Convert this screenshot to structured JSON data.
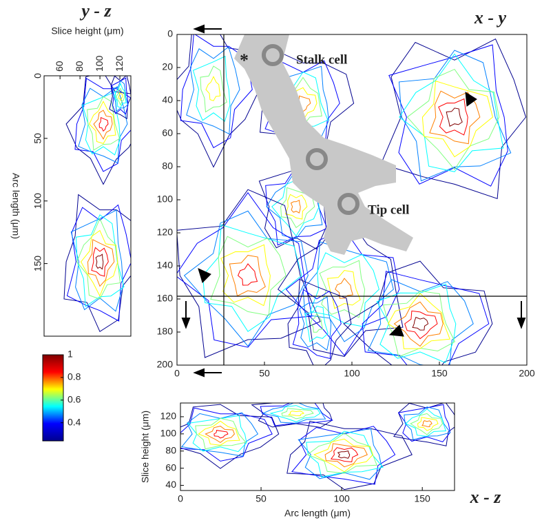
{
  "chart_data": [
    {
      "type": "contour",
      "title": "x - y",
      "xlim": [
        0,
        200
      ],
      "xticks": [
        0,
        50,
        100,
        150,
        200
      ],
      "ylim": [
        0,
        200
      ],
      "yticks": [
        0,
        20,
        40,
        60,
        80,
        100,
        120,
        140,
        160,
        180,
        200
      ],
      "yreverse": true,
      "annotations": [
        "Stalk cell",
        "Tip cell",
        "*"
      ]
    },
    {
      "type": "contour",
      "title": "y - z",
      "xlabel": "Slice height (μm)",
      "ylabel": "Arc length (μm)",
      "xlim": [
        44,
        131
      ],
      "xticks": [
        60,
        80,
        100,
        120
      ],
      "xaxis_position": "top",
      "ylim": [
        0,
        208
      ],
      "yticks": [
        0,
        50,
        100,
        150
      ],
      "yreverse": true
    },
    {
      "type": "contour",
      "title": "x - z",
      "xlabel": "Arc length (μm)",
      "ylabel": "Slice height (μm)",
      "xlim": [
        0,
        170
      ],
      "xticks": [
        0,
        50,
        100,
        150
      ],
      "ylim": [
        34,
        136
      ],
      "yticks": [
        40,
        60,
        80,
        100,
        120
      ]
    },
    {
      "type": "colorbar",
      "ylim": [
        0.24,
        1
      ],
      "yticks": [
        0.4,
        0.6,
        0.8,
        1
      ],
      "colors": [
        "#00008f",
        "#0000ff",
        "#00ffff",
        "#ffff00",
        "#ff0000",
        "#800000"
      ]
    }
  ]
}
